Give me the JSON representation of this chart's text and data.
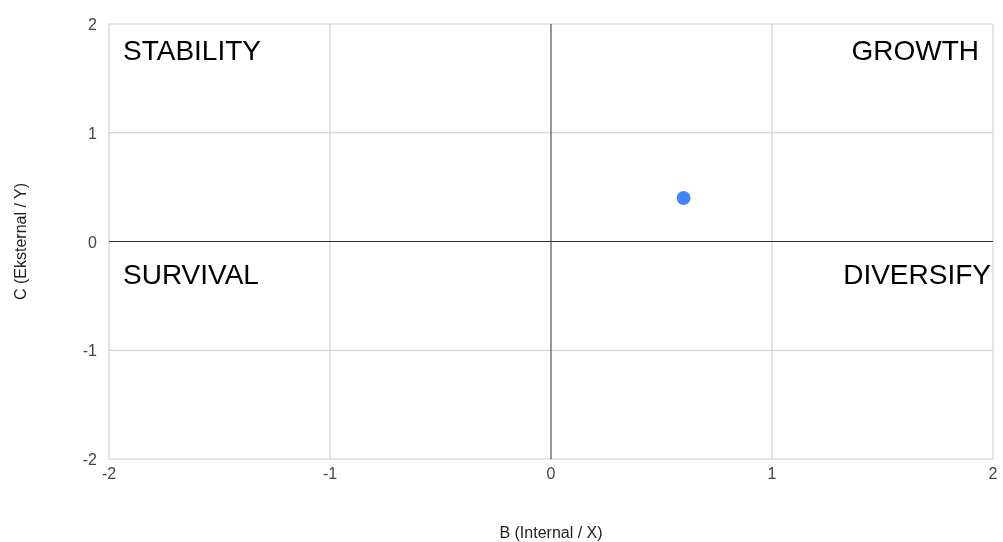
{
  "chart_data": {
    "type": "scatter",
    "xlabel": "B (Internal / X)",
    "ylabel": "C (Eksternal / Y)",
    "x": [
      0.6
    ],
    "values": [
      0.4
    ],
    "color": "#4285f4",
    "marker": "circle",
    "xlim": [
      -2,
      2
    ],
    "ylim": [
      -2,
      2
    ],
    "xticks": [
      -2,
      -1,
      0,
      1,
      2
    ],
    "yticks": [
      -2,
      -1,
      0,
      1,
      2
    ],
    "grid": true,
    "annotations": [
      "STABILITY",
      "GROWTH",
      "SURVIVAL",
      "DIVERSIFY"
    ]
  }
}
